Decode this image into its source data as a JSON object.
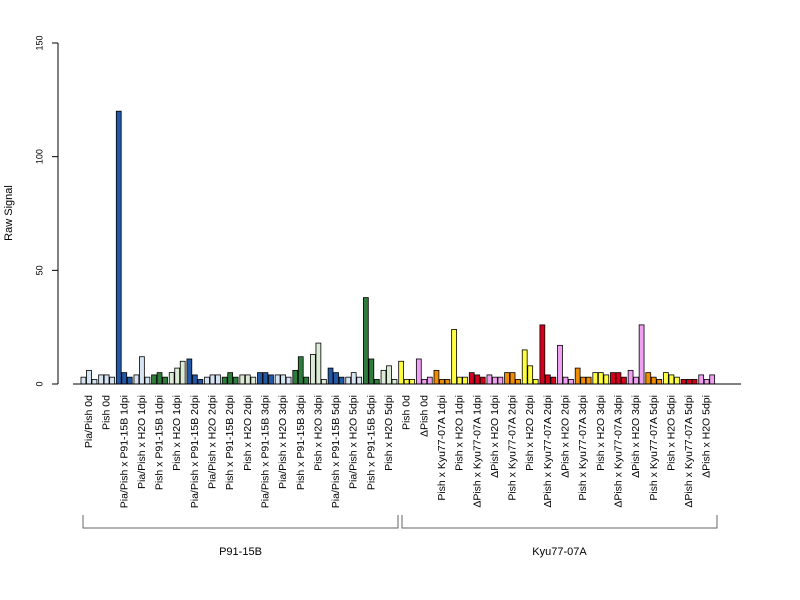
{
  "chart_data": {
    "type": "bar",
    "ylabel": "Raw Signal",
    "ylim": [
      0,
      150
    ],
    "yticks": [
      0,
      50,
      100,
      150
    ],
    "bars_per_group": 3,
    "categories": [
      "Pia/Pish 0d",
      "Pish 0d",
      "Pia/Pish x P91-15B 1dpi",
      "Pia/Pish x H2O 1dpi",
      "Pish x P91-15B 1dpi",
      "Pish x H2O 1dpi",
      "Pia/Pish x P91-15B 2dpi",
      "Pia/Pish x H2O 2dpi",
      "Pish x P91-15B 2dpi",
      "Pish x H2O 2dpi",
      "Pia/Pish x P91-15B 3dpi",
      "Pia/Pish x H2O 3dpi",
      "Pish x P91-15B 3dpi",
      "Pish x H2O 3dpi",
      "Pia/Pish x P91-15B 5dpi",
      "Pia/Pish x H2O 5dpi",
      "Pish x P91-15B 5dpi",
      "Pish x H2O 5dpi",
      "Pish 0d",
      "ΔPish 0d",
      "Pish x Kyu77-07A 1dpi",
      "Pish x H2O 1dpi",
      "ΔPish x Kyu77-07A 1dpi",
      "ΔPish x H2O 1dpi",
      "Pish x Kyu77-07A 2dpi",
      "Pish x H2O 2dpi",
      "ΔPish x Kyu77-07A 2dpi",
      "ΔPish x H2O 2dpi",
      "Pish x Kyu77-07A 3dpi",
      "Pish x H2O 3dpi",
      "ΔPish x Kyu77-07A 3dpi",
      "ΔPish x H2O 3dpi",
      "Pish x Kyu77-07A 5dpi",
      "Pish x H2O 5dpi",
      "ΔPish x Kyu77-07A 5dpi",
      "ΔPish x H2O 5dpi"
    ],
    "values": [
      [
        3,
        6,
        2
      ],
      [
        4,
        4,
        3
      ],
      [
        120,
        5,
        3
      ],
      [
        4,
        12,
        3
      ],
      [
        4,
        5,
        3
      ],
      [
        5,
        7,
        10
      ],
      [
        11,
        4,
        2
      ],
      [
        3,
        4,
        4
      ],
      [
        3,
        5,
        3
      ],
      [
        4,
        4,
        3
      ],
      [
        5,
        5,
        4
      ],
      [
        4,
        4,
        3
      ],
      [
        6,
        12,
        3
      ],
      [
        13,
        18,
        2
      ],
      [
        7,
        5,
        3
      ],
      [
        3,
        5,
        3
      ],
      [
        38,
        11,
        2
      ],
      [
        6,
        8,
        2
      ],
      [
        10,
        2,
        2
      ],
      [
        11,
        2,
        3
      ],
      [
        6,
        2,
        2
      ],
      [
        24,
        3,
        3
      ],
      [
        5,
        4,
        3
      ],
      [
        4,
        3,
        3
      ],
      [
        5,
        5,
        2
      ],
      [
        15,
        8,
        2
      ],
      [
        26,
        4,
        3
      ],
      [
        17,
        3,
        2
      ],
      [
        7,
        3,
        3
      ],
      [
        5,
        5,
        4
      ],
      [
        5,
        5,
        3
      ],
      [
        6,
        3,
        26
      ],
      [
        5,
        3,
        2
      ],
      [
        5,
        4,
        3
      ],
      [
        2,
        2,
        2
      ],
      [
        4,
        2,
        4
      ]
    ],
    "colors": [
      [
        "#d6e3f3",
        "#d6e3f3",
        "#d6e3f3"
      ],
      [
        "#d6e3f3",
        "#d6e3f3",
        "#d6e3f3"
      ],
      [
        "#2358a6",
        "#2358a6",
        "#2358a6"
      ],
      [
        "#d6e3f3",
        "#d6e3f3",
        "#d6e3f3"
      ],
      [
        "#2e7d3c",
        "#2e7d3c",
        "#2e7d3c"
      ],
      [
        "#dcebd6",
        "#dcebd6",
        "#dcebd6"
      ],
      [
        "#2358a6",
        "#2358a6",
        "#2358a6"
      ],
      [
        "#d6e3f3",
        "#d6e3f3",
        "#d6e3f3"
      ],
      [
        "#2e7d3c",
        "#2e7d3c",
        "#2e7d3c"
      ],
      [
        "#dcebd6",
        "#dcebd6",
        "#dcebd6"
      ],
      [
        "#2358a6",
        "#2358a6",
        "#2358a6"
      ],
      [
        "#d6e3f3",
        "#d6e3f3",
        "#d6e3f3"
      ],
      [
        "#2e7d3c",
        "#2e7d3c",
        "#2e7d3c"
      ],
      [
        "#dcebd6",
        "#dcebd6",
        "#dcebd6"
      ],
      [
        "#2358a6",
        "#2358a6",
        "#2358a6"
      ],
      [
        "#d6e3f3",
        "#d6e3f3",
        "#d6e3f3"
      ],
      [
        "#2e7d3c",
        "#2e7d3c",
        "#2e7d3c"
      ],
      [
        "#dcebd6",
        "#dcebd6",
        "#dcebd6"
      ],
      [
        "#ffff40",
        "#ffff40",
        "#ffff40"
      ],
      [
        "#f0a0f0",
        "#f0a0f0",
        "#f0a0f0"
      ],
      [
        "#f08c00",
        "#f08c00",
        "#f08c00"
      ],
      [
        "#ffff40",
        "#ffff40",
        "#ffff40"
      ],
      [
        "#d4001c",
        "#d4001c",
        "#d4001c"
      ],
      [
        "#f0a0f0",
        "#f0a0f0",
        "#f0a0f0"
      ],
      [
        "#f08c00",
        "#f08c00",
        "#f08c00"
      ],
      [
        "#ffff40",
        "#ffff40",
        "#ffff40"
      ],
      [
        "#d4001c",
        "#d4001c",
        "#d4001c"
      ],
      [
        "#f0a0f0",
        "#f0a0f0",
        "#f0a0f0"
      ],
      [
        "#f08c00",
        "#f08c00",
        "#f08c00"
      ],
      [
        "#ffff40",
        "#ffff40",
        "#ffff40"
      ],
      [
        "#d4001c",
        "#d4001c",
        "#d4001c"
      ],
      [
        "#f0a0f0",
        "#f0a0f0",
        "#f0a0f0"
      ],
      [
        "#f08c00",
        "#f08c00",
        "#f08c00"
      ],
      [
        "#ffff40",
        "#ffff40",
        "#ffff40"
      ],
      [
        "#d4001c",
        "#d4001c",
        "#d4001c"
      ],
      [
        "#f0a0f0",
        "#f0a0f0",
        "#f0a0f0"
      ]
    ],
    "sections": [
      {
        "label": "P91-15B",
        "start": 0,
        "end": 17
      },
      {
        "label": "Kyu77-07A",
        "start": 18,
        "end": 35
      }
    ],
    "grid": false,
    "legend": "none"
  }
}
